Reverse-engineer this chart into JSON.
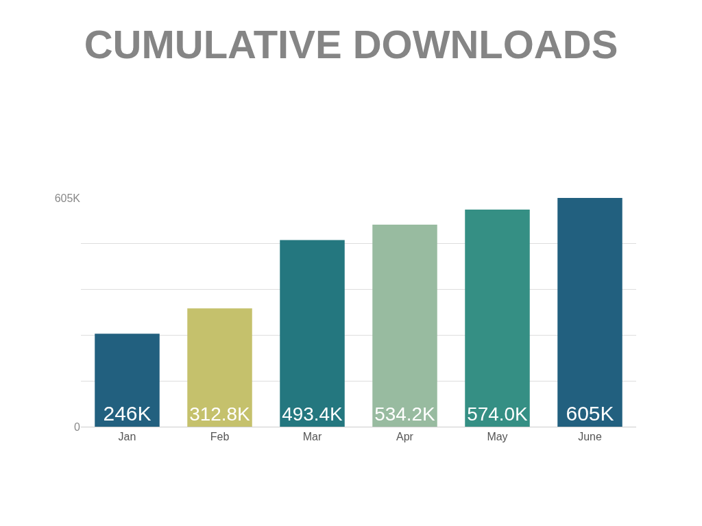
{
  "chart_data": {
    "type": "bar",
    "title": "CUMULATIVE DOWNLOADS",
    "categories": [
      "Jan",
      "Feb",
      "Mar",
      "Apr",
      "May",
      "June"
    ],
    "values": [
      246,
      312.8,
      493.4,
      534.2,
      574.0,
      605
    ],
    "value_labels": [
      "246K",
      "312.8K",
      "493.4K",
      "534.2K",
      "574.0K",
      "605K"
    ],
    "colors": [
      "#22607f",
      "#c5c16c",
      "#24777f",
      "#98bba0",
      "#358f84",
      "#22607f"
    ],
    "ylim": [
      0,
      605
    ],
    "yticks": [
      0,
      {
        "value": 121,
        "label": null
      },
      {
        "value": 242,
        "label": null
      },
      {
        "value": 363,
        "label": null
      },
      {
        "value": 484,
        "label": null
      },
      {
        "value": 605,
        "label": "605K"
      }
    ],
    "grid": "y"
  }
}
